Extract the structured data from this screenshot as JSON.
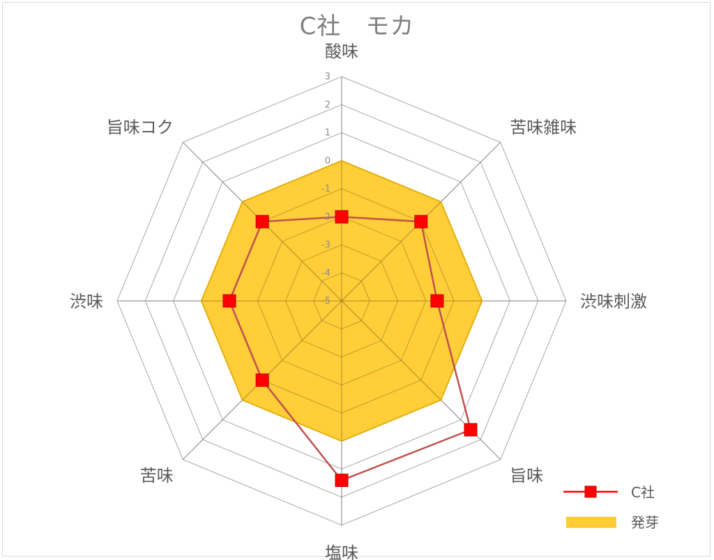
{
  "chart_data": {
    "type": "radar",
    "title": "C社　モカ",
    "categories": [
      "酸味",
      "苦味雑味",
      "渋味刺激",
      "旨味",
      "塩味",
      "苦味",
      "渋味",
      "旨味コク"
    ],
    "rlim": [
      -5,
      3
    ],
    "ticks": [
      "-5",
      "-4",
      "-3",
      "-2",
      "-1",
      "0",
      "1",
      "2",
      "3"
    ],
    "tick_values": [
      -5,
      -4,
      -3,
      -2,
      -1,
      0,
      1,
      2,
      3
    ],
    "series": [
      {
        "name": "C社",
        "style": "line-marker",
        "color": "#c0504d",
        "marker_color": "#ff0000",
        "values": [
          -2,
          -1,
          -1.6,
          1.5,
          1.4,
          -1,
          -1,
          -1
        ]
      },
      {
        "name": "発芽",
        "style": "filled",
        "color": "#ffc000",
        "values": [
          0,
          0,
          0,
          0,
          0,
          0,
          0,
          0
        ]
      }
    ],
    "legend_position": "bottom-right",
    "grid": true
  }
}
